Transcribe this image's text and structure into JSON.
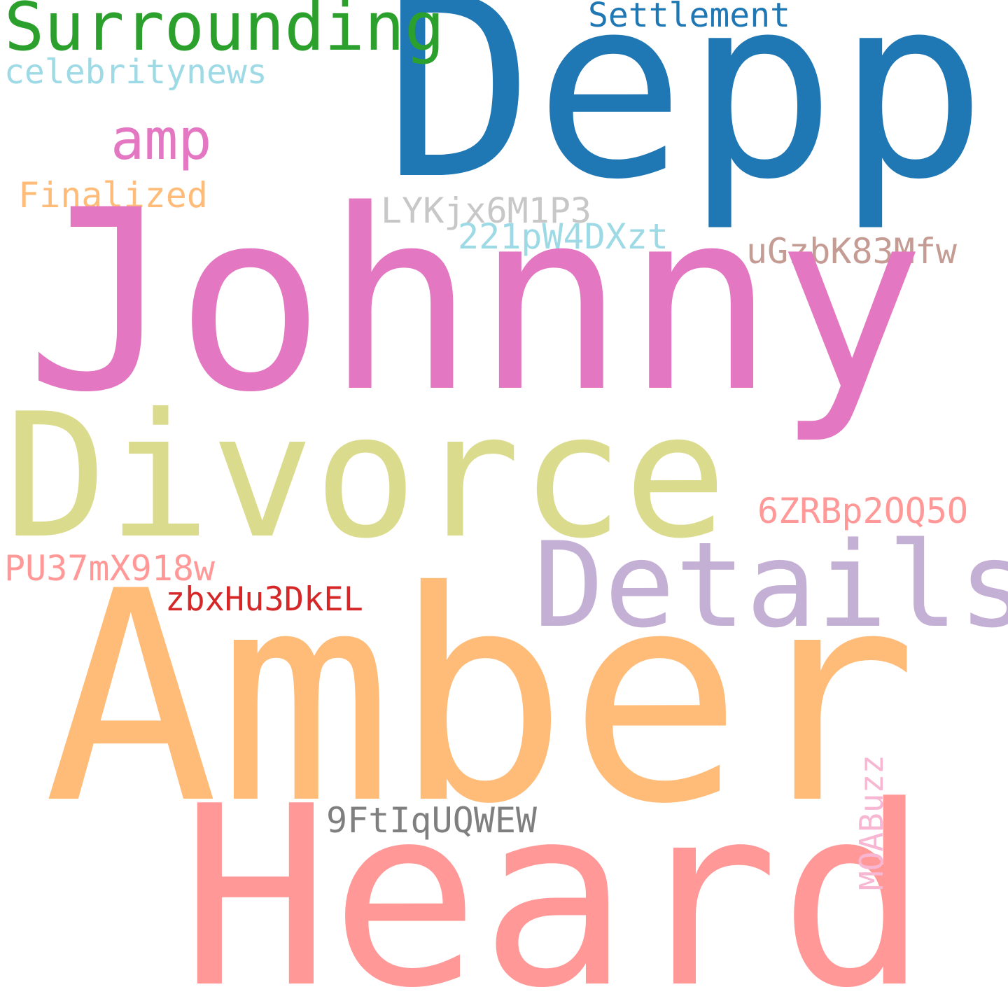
{
  "word_cloud": {
    "background_color": "#ffffff",
    "words": [
      {
        "text": "Depp",
        "color": "#1f77b4",
        "orientation": "horizontal"
      },
      {
        "text": "Surrounding",
        "color": "#2ca02c",
        "orientation": "horizontal"
      },
      {
        "text": "Settlement",
        "color": "#1f77b4",
        "orientation": "horizontal"
      },
      {
        "text": "celebritynews",
        "color": "#9edae5",
        "orientation": "horizontal"
      },
      {
        "text": "amp",
        "color": "#e377c2",
        "orientation": "horizontal"
      },
      {
        "text": "Finalized",
        "color": "#ffbb78",
        "orientation": "horizontal"
      },
      {
        "text": "LYKjx6M1P3",
        "color": "#c7c7c7",
        "orientation": "horizontal"
      },
      {
        "text": "221pW4DXzt",
        "color": "#9edae5",
        "orientation": "horizontal"
      },
      {
        "text": "uGzbK83Mfw",
        "color": "#c49c94",
        "orientation": "horizontal"
      },
      {
        "text": "Johnny",
        "color": "#e377c2",
        "orientation": "horizontal"
      },
      {
        "text": "Divorce",
        "color": "#dbdb8d",
        "orientation": "horizontal"
      },
      {
        "text": "6ZRBp2OQ5O",
        "color": "#ff9896",
        "orientation": "horizontal"
      },
      {
        "text": "Details",
        "color": "#c5b0d5",
        "orientation": "horizontal"
      },
      {
        "text": "PU37mX918w",
        "color": "#ff9896",
        "orientation": "horizontal"
      },
      {
        "text": "zbxHu3DkEL",
        "color": "#d62728",
        "orientation": "horizontal"
      },
      {
        "text": "Amber",
        "color": "#ffbb78",
        "orientation": "horizontal"
      },
      {
        "text": "9FtIqUQWEW",
        "color": "#7f7f7f",
        "orientation": "horizontal"
      },
      {
        "text": "Heard",
        "color": "#ff9896",
        "orientation": "horizontal"
      },
      {
        "text": "MOABuzz",
        "color": "#f7b6d2",
        "orientation": "vertical"
      }
    ]
  }
}
